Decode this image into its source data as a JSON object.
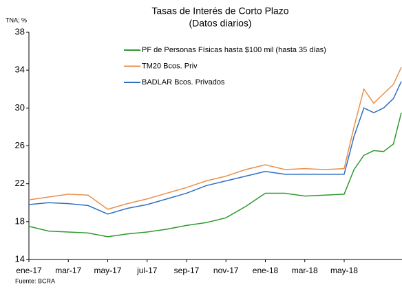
{
  "chart_data": {
    "type": "line",
    "title": "Tasas de Interés de Corto Plazo",
    "subtitle": "(Datos diarios)",
    "y_label": "TNA; %",
    "source": "Fuente: BCRA",
    "x": [
      0,
      1,
      2,
      3,
      4,
      5,
      6,
      7,
      8,
      9,
      10,
      11,
      12,
      13,
      14,
      15,
      16,
      16.5,
      17,
      17.5,
      18,
      18.5,
      18.9
    ],
    "xlim": [
      0,
      18.9
    ],
    "xticks": [
      {
        "value": 0,
        "label": "ene-17"
      },
      {
        "value": 2,
        "label": "mar-17"
      },
      {
        "value": 4,
        "label": "may-17"
      },
      {
        "value": 6,
        "label": "jul-17"
      },
      {
        "value": 8,
        "label": "sep-17"
      },
      {
        "value": 10,
        "label": "nov-17"
      },
      {
        "value": 12,
        "label": "ene-18"
      },
      {
        "value": 14,
        "label": "mar-18"
      },
      {
        "value": 16,
        "label": "may-18"
      }
    ],
    "ylim": [
      14,
      38
    ],
    "yticks": [
      14,
      18,
      22,
      26,
      30,
      34,
      38
    ],
    "grid": false,
    "series": [
      {
        "name": "PF de Personas Físicas hasta $100 mil (hasta 35 días)",
        "color": "#2e9a2e",
        "values": [
          17.5,
          17.0,
          16.9,
          16.8,
          16.4,
          16.7,
          16.9,
          17.2,
          17.6,
          17.9,
          18.4,
          19.6,
          21.0,
          21.0,
          20.7,
          20.8,
          20.9,
          23.5,
          25.0,
          25.5,
          25.4,
          26.2,
          29.5
        ]
      },
      {
        "name": "TM20 Bcos. Priv",
        "color": "#e8904a",
        "values": [
          20.3,
          20.6,
          20.9,
          20.8,
          19.3,
          19.9,
          20.4,
          21.0,
          21.6,
          22.3,
          22.8,
          23.5,
          24.0,
          23.5,
          23.6,
          23.5,
          23.6,
          28.0,
          32.0,
          30.5,
          31.5,
          32.5,
          34.3
        ]
      },
      {
        "name": "BADLAR Bcos. Privados",
        "color": "#2f6fc4",
        "values": [
          19.8,
          20.0,
          19.9,
          19.7,
          18.8,
          19.4,
          19.8,
          20.4,
          21.0,
          21.8,
          22.3,
          22.8,
          23.3,
          23.0,
          23.0,
          23.0,
          23.0,
          27.0,
          30.0,
          29.5,
          30.0,
          31.0,
          32.8
        ]
      }
    ]
  }
}
